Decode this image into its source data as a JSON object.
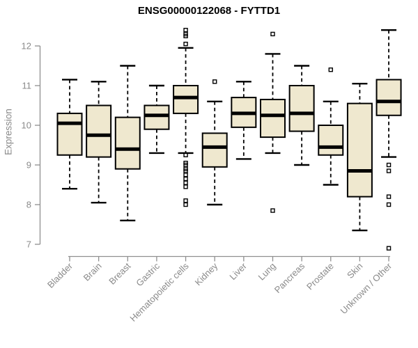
{
  "chart_data": {
    "type": "boxplot",
    "title": "ENSG00000122068 - FYTTD1",
    "xlabel": "",
    "ylabel": "Expression",
    "ylim": [
      6.8,
      12.5
    ],
    "yticks": [
      7,
      8,
      9,
      10,
      11,
      12
    ],
    "grid": false,
    "legend": "none",
    "categories": [
      "Bladder",
      "Brain",
      "Breast",
      "Gastric",
      "Hematopoietic cells",
      "Kidney",
      "Liver",
      "Lung",
      "Pancreas",
      "Prostate",
      "Skin",
      "Unknown / Other"
    ],
    "boxes": [
      {
        "category": "Bladder",
        "low": 8.4,
        "q1": 9.25,
        "median": 10.05,
        "q3": 10.3,
        "high": 11.15,
        "outliers": []
      },
      {
        "category": "Brain",
        "low": 8.05,
        "q1": 9.2,
        "median": 9.75,
        "q3": 10.5,
        "high": 11.1,
        "outliers": []
      },
      {
        "category": "Breast",
        "low": 7.6,
        "q1": 8.9,
        "median": 9.4,
        "q3": 10.2,
        "high": 11.5,
        "outliers": []
      },
      {
        "category": "Gastric",
        "low": 9.3,
        "q1": 9.9,
        "median": 10.25,
        "q3": 10.5,
        "high": 11.0,
        "outliers": []
      },
      {
        "category": "Hematopoietic cells",
        "low": 9.3,
        "q1": 10.3,
        "median": 10.7,
        "q3": 11.0,
        "high": 11.95,
        "outliers": [
          12.4,
          12.3,
          12.25,
          12.05,
          9.25,
          9.05,
          9.0,
          8.9,
          8.85,
          8.75,
          8.65,
          8.55,
          8.45,
          8.1,
          8.0
        ]
      },
      {
        "category": "Kidney",
        "low": 8.0,
        "q1": 8.95,
        "median": 9.45,
        "q3": 9.8,
        "high": 10.6,
        "outliers": [
          11.1
        ]
      },
      {
        "category": "Liver",
        "low": 9.15,
        "q1": 9.95,
        "median": 10.3,
        "q3": 10.7,
        "high": 11.1,
        "outliers": []
      },
      {
        "category": "Lung",
        "low": 9.3,
        "q1": 9.7,
        "median": 10.25,
        "q3": 10.65,
        "high": 11.8,
        "outliers": [
          12.3,
          7.85
        ]
      },
      {
        "category": "Pancreas",
        "low": 9.0,
        "q1": 9.85,
        "median": 10.3,
        "q3": 11.0,
        "high": 11.5,
        "outliers": []
      },
      {
        "category": "Prostate",
        "low": 8.5,
        "q1": 9.25,
        "median": 9.45,
        "q3": 10.0,
        "high": 10.6,
        "outliers": [
          11.4
        ]
      },
      {
        "category": "Skin",
        "low": 7.35,
        "q1": 8.2,
        "median": 8.85,
        "q3": 10.55,
        "high": 11.05,
        "outliers": []
      },
      {
        "category": "Unknown / Other",
        "low": 9.2,
        "q1": 10.25,
        "median": 10.6,
        "q3": 11.15,
        "high": 12.4,
        "outliers": [
          9.0,
          8.85,
          8.2,
          8.0,
          6.9
        ]
      }
    ],
    "style": {
      "box_fill": "#EFE8CF",
      "box_stroke": "#000000",
      "median_color": "#000000",
      "whisker_color": "#000000",
      "outlier_color": "#000000",
      "axis_color": "#8f8f8f",
      "tick_label_color": "#8a8a8a",
      "title_color": "#000000"
    }
  }
}
